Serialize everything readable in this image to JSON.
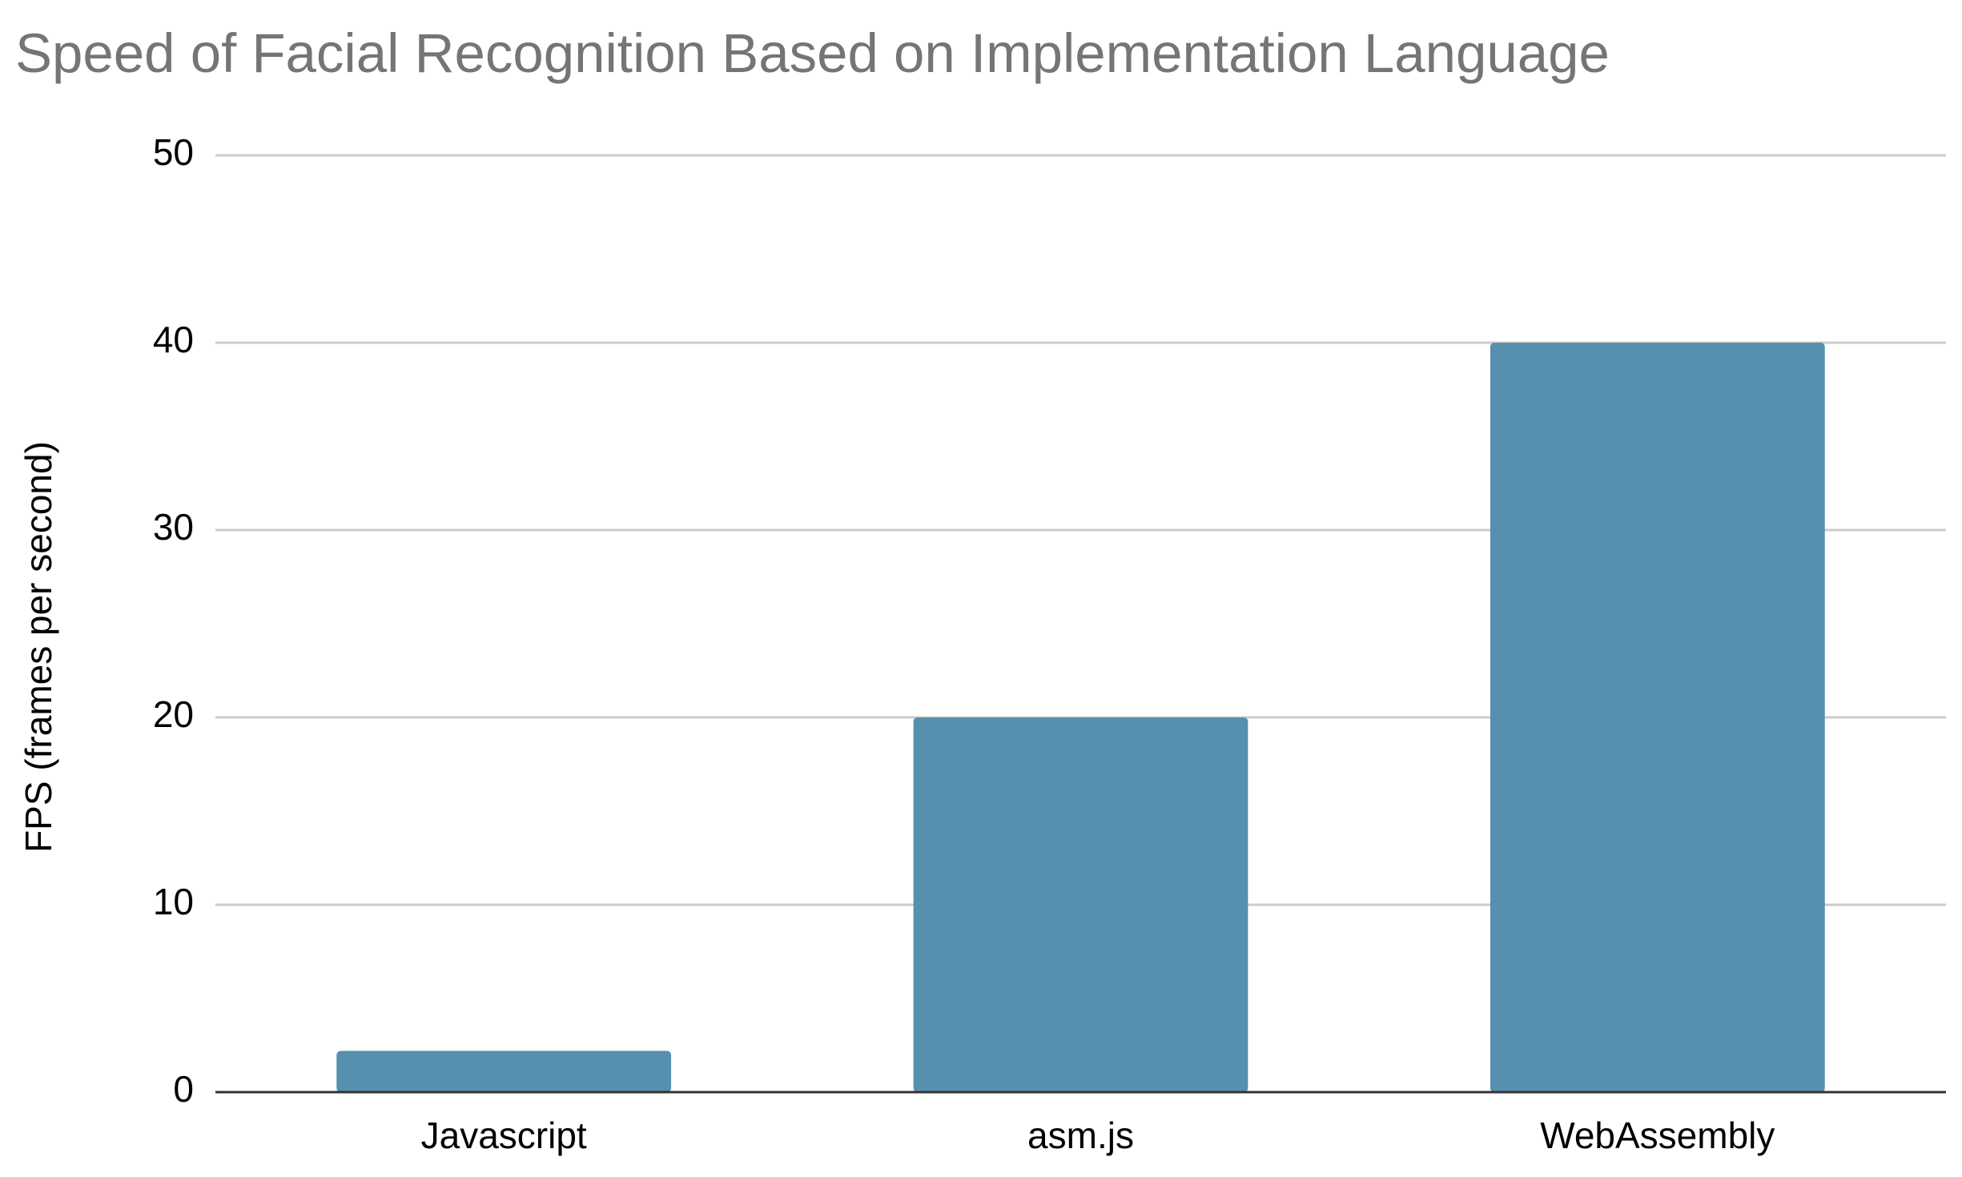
{
  "chart_data": {
    "type": "bar",
    "title": "Speed of Facial Recognition Based on Implementation Language",
    "y_label": "FPS (frames per second)",
    "categories": [
      "Javascript",
      "asm.js",
      "WebAssembly"
    ],
    "values": [
      2.2,
      20,
      40
    ],
    "color": "#5790ae",
    "ylim": [
      0,
      50
    ],
    "yticks": [
      0,
      10,
      20,
      30,
      40,
      50
    ],
    "grid": true
  }
}
